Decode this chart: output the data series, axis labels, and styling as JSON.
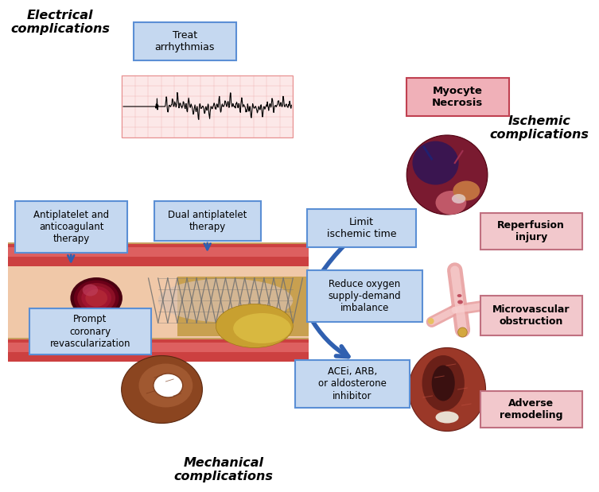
{
  "bg_color": "#ffffff",
  "blue_box_facecolor": "#c5d8f0",
  "blue_box_edge": "#5b8fd5",
  "pink_box_facecolor": "#f2c8cc",
  "pink_box_edge": "#c07080",
  "red_box_facecolor": "#f0b0b8",
  "red_box_edge": "#c04050",
  "arrow_color": "#3060b0",
  "electrical_label": "Electrical\ncomplications",
  "ischemic_label": "Ischemic\ncomplications",
  "mechanical_label": "Mechanical\ncomplications",
  "treat_arrhythmias": "Treat\narrhythmias",
  "myocyte_necrosis": "Myocyte\nNecrosis",
  "reperfusion_injury": "Reperfusion\ninjury",
  "microvascular_obstruction": "Microvascular\nobstruction",
  "adverse_remodeling": "Adverse\nremodeling",
  "antiplatelet": "Antiplatelet and\nanticoagulant\ntherapy",
  "dual_antiplatelet": "Dual antiplatelet\ntherapy",
  "prompt_coronary": "Prompt\ncoronary\nrevascularization",
  "limit_ischemic": "Limit\nischemic time",
  "reduce_oxygen": "Reduce oxygen\nsupply-demand\nimbalance",
  "acei": "ACEi, ARB,\nor aldosterone\ninhibitor",
  "ecg_color": "#fce8e8",
  "ecg_grid": "#e89090",
  "vessel_outer": "#c8a060",
  "vessel_wall_top": "#cc4040",
  "vessel_wall_bot": "#cc4040",
  "vessel_lumen": "#f0c8a8",
  "thrombus_dark": "#5a0015",
  "thrombus_mid": "#800020",
  "plaque_yellow": "#c8a020",
  "stent_color": "#707070"
}
